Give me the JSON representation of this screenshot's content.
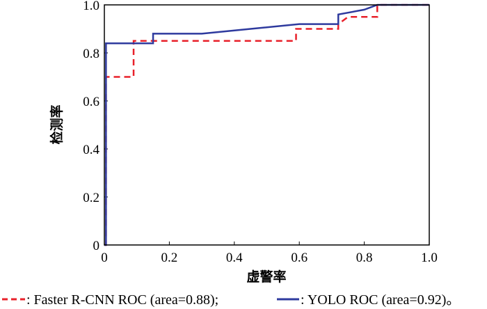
{
  "chart_data": {
    "type": "line",
    "title": "",
    "xlabel": "虚警率",
    "ylabel": "检测率",
    "xlim": [
      0,
      1
    ],
    "ylim": [
      0,
      1
    ],
    "xticks": [
      0,
      0.2,
      0.4,
      0.6,
      0.8,
      1.0
    ],
    "xtick_labels": [
      "0",
      "0.2",
      "0.4",
      "0.6",
      "0.8",
      "1.0"
    ],
    "yticks": [
      0,
      0.2,
      0.4,
      0.6,
      0.8,
      1.0
    ],
    "ytick_labels": [
      "0",
      "0.2",
      "0.4",
      "0.6",
      "0.8",
      "1.0"
    ],
    "grid": false,
    "legend_position": "bottom",
    "series": [
      {
        "name": "Faster R-CNN ROC",
        "legend_label": ": Faster R-CNN ROC (area=0.88);",
        "color": "#e8202a",
        "style": "dashed",
        "x": [
          0,
          0.005,
          0.005,
          0.09,
          0.09,
          0.15,
          0.59,
          0.59,
          0.72,
          0.72,
          0.75,
          0.84,
          0.84,
          1.0
        ],
        "y": [
          0,
          0,
          0.7,
          0.7,
          0.85,
          0.85,
          0.85,
          0.9,
          0.9,
          0.92,
          0.95,
          0.95,
          1.0,
          1.0
        ]
      },
      {
        "name": "YOLO ROC",
        "legend_label": ": YOLO ROC (area=0.92)。",
        "color": "#2e3a9e",
        "style": "solid",
        "x": [
          0,
          0.005,
          0.005,
          0.15,
          0.15,
          0.3,
          0.45,
          0.6,
          0.72,
          0.72,
          0.8,
          0.84,
          1.0
        ],
        "y": [
          0,
          0,
          0.84,
          0.84,
          0.88,
          0.88,
          0.9,
          0.92,
          0.92,
          0.96,
          0.98,
          1.0,
          1.0
        ]
      }
    ]
  }
}
